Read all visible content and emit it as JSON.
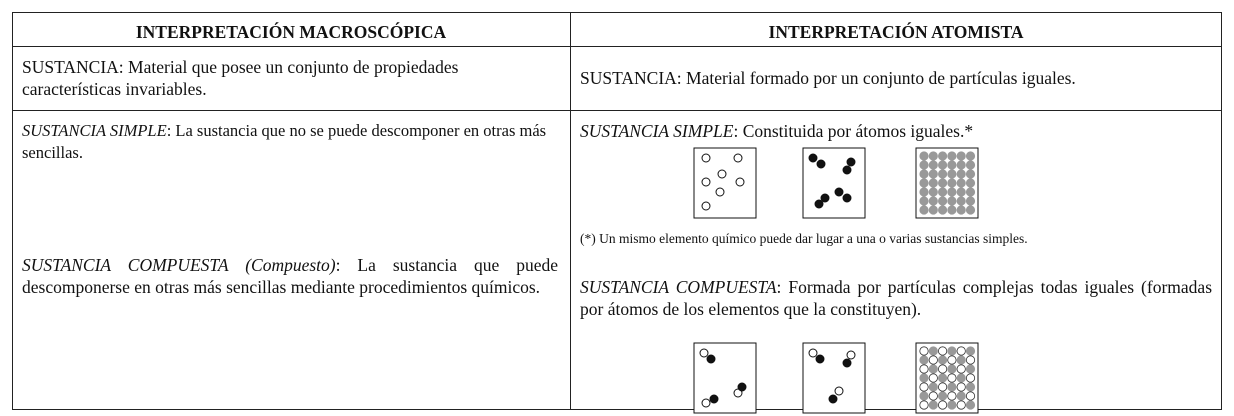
{
  "table": {
    "headers": [
      "INTERPRETACIÓN MACROSCÓPICA",
      "INTERPRETACIÓN ATOMISTA"
    ],
    "sustancia": {
      "macro": "SUSTANCIA: Material que posee un conjunto de propiedades características invariables.",
      "atom": "SUSTANCIA: Material formado por un conjunto de partículas iguales."
    },
    "simple": {
      "macro": {
        "term": "SUSTANCIA SIMPLE",
        "text": ": La sustancia que no se puede descomponer en otras más sencillas."
      },
      "atom": {
        "term": "SUSTANCIA SIMPLE",
        "text": ": Constituida por átomos iguales.*"
      }
    },
    "note": "(*) Un mismo elemento químico puede dar lugar a una o varias sustancias simples.",
    "compuesta": {
      "macro": {
        "term": "SUSTANCIA COMPUESTA (Compuesto)",
        "text": ": La sustancia que puede descomponerse en otras más sencillas mediante procedimientos químicos."
      },
      "atom": {
        "term": "SUSTANCIA COMPUESTA",
        "text": ": Formada por partículas complejas todas iguales (formadas por átomos de los elementos que la constituyen)."
      }
    }
  }
}
